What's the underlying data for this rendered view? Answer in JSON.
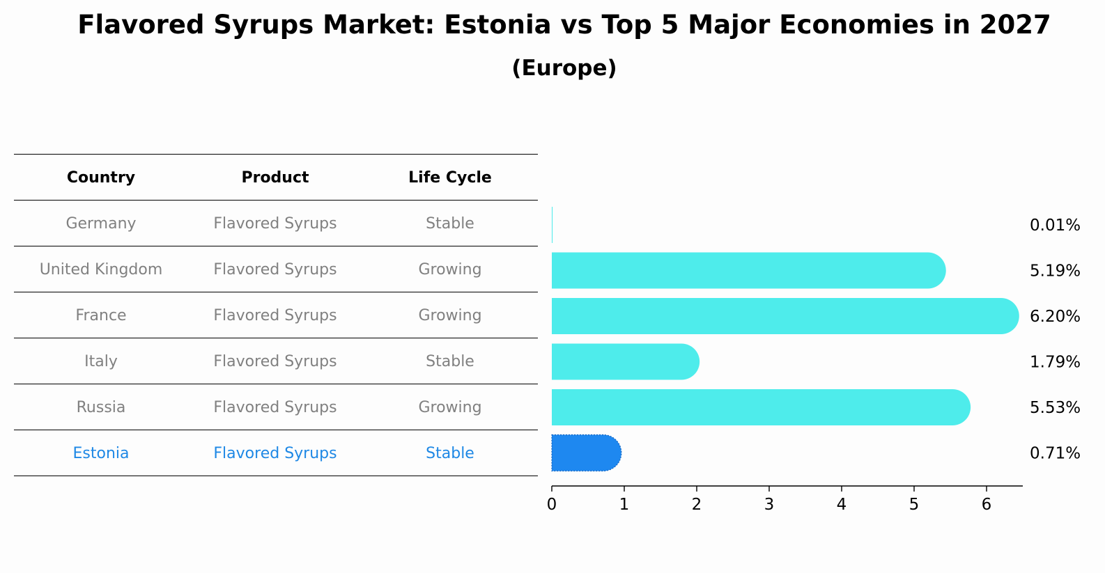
{
  "title": "Flavored Syrups Market: Estonia vs Top 5 Major Economies in 2027",
  "subtitle": "(Europe)",
  "table": {
    "headers": [
      "Country",
      "Product",
      "Life Cycle"
    ],
    "rows": [
      [
        "Germany",
        "Flavored Syrups",
        "Stable"
      ],
      [
        "United Kingdom",
        "Flavored Syrups",
        "Growing"
      ],
      [
        "France",
        "Flavored Syrups",
        "Growing"
      ],
      [
        "Italy",
        "Flavored Syrups",
        "Stable"
      ],
      [
        "Russia",
        "Flavored Syrups",
        "Growing"
      ],
      [
        "Estonia",
        "Flavored Syrups",
        "Stable"
      ]
    ],
    "highlight_row": 5
  },
  "colors": {
    "bar": "#4eeceb",
    "highlight_bar": "#1e88f0",
    "highlight_text": "#1e88e5",
    "muted_text": "#808080"
  },
  "chart_data": {
    "type": "bar",
    "orientation": "horizontal",
    "categories": [
      "Germany",
      "United Kingdom",
      "France",
      "Italy",
      "Russia",
      "Estonia"
    ],
    "values": [
      0.01,
      5.19,
      6.2,
      1.79,
      5.53,
      0.71
    ],
    "value_labels": [
      "0.01%",
      "5.19%",
      "6.20%",
      "1.79%",
      "5.53%",
      "0.71%"
    ],
    "xlim": [
      0,
      6.5
    ],
    "xticks": [
      "0",
      "1",
      "2",
      "3",
      "4",
      "5",
      "6"
    ],
    "grid": false,
    "highlight_category": "Estonia"
  }
}
